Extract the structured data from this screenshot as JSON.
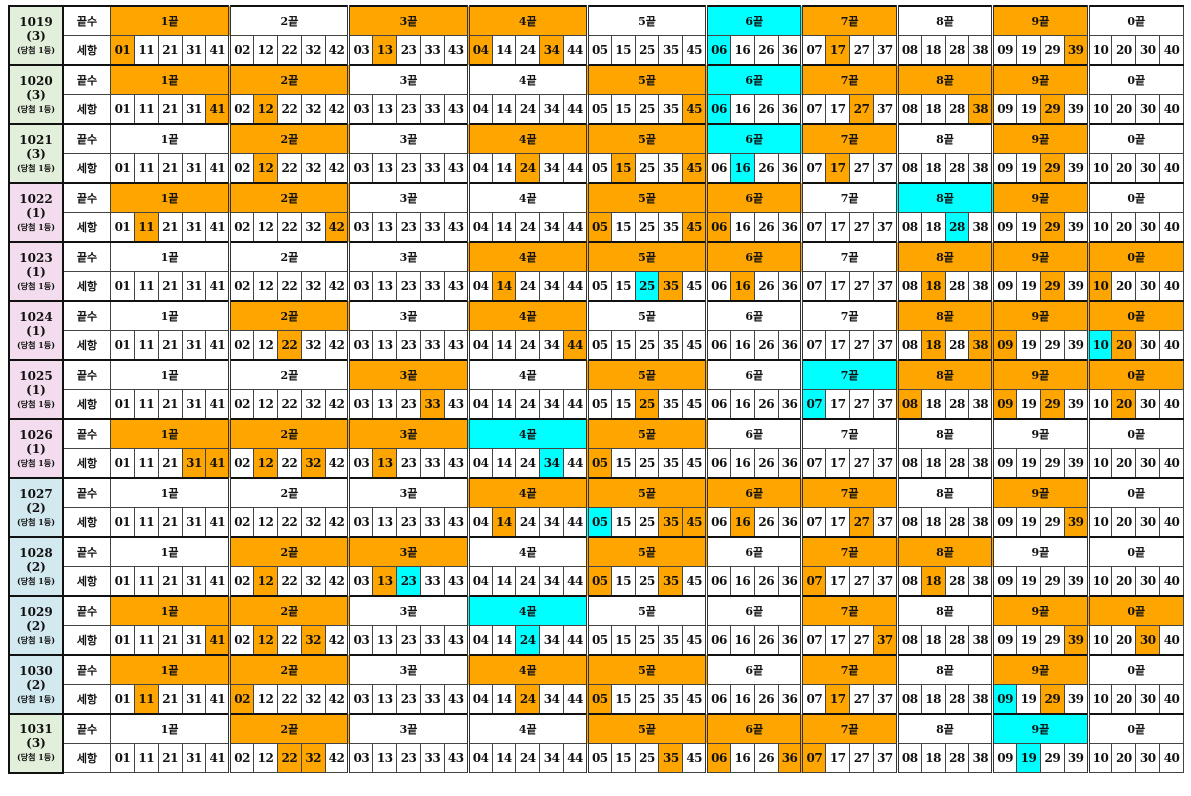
{
  "labels": {
    "tail": "끝수",
    "item": "세항"
  },
  "colors": {
    "orange": "#ffa500",
    "cyan": "#00ffff",
    "white": "#ffffff",
    "green": "#e2efda",
    "pink": "#f2dcee",
    "blue": "#d2e9ef"
  },
  "groups": [
    {
      "label": "1끝",
      "numbers": [
        "01",
        "11",
        "21",
        "31",
        "41"
      ]
    },
    {
      "label": "2끝",
      "numbers": [
        "02",
        "12",
        "22",
        "32",
        "42"
      ]
    },
    {
      "label": "3끝",
      "numbers": [
        "03",
        "13",
        "23",
        "33",
        "43"
      ]
    },
    {
      "label": "4끝",
      "numbers": [
        "04",
        "14",
        "24",
        "34",
        "44"
      ]
    },
    {
      "label": "5끝",
      "numbers": [
        "05",
        "15",
        "25",
        "35",
        "45"
      ]
    },
    {
      "label": "6끝",
      "numbers": [
        "06",
        "16",
        "26",
        "36"
      ]
    },
    {
      "label": "7끝",
      "numbers": [
        "07",
        "17",
        "27",
        "37"
      ]
    },
    {
      "label": "8끝",
      "numbers": [
        "08",
        "18",
        "28",
        "38"
      ]
    },
    {
      "label": "9끝",
      "numbers": [
        "09",
        "19",
        "29",
        "39"
      ]
    },
    {
      "label": "0끝",
      "numbers": [
        "10",
        "20",
        "30",
        "40"
      ]
    }
  ],
  "rows": [
    {
      "draw": "1019",
      "count": "(3)",
      "note": "(당첨 1등)",
      "bg": "green",
      "orange_groups": [
        "1끝",
        "3끝",
        "4끝",
        "7끝",
        "9끝"
      ],
      "cyan_groups": [
        "6끝"
      ],
      "orange_numbers": [
        "01",
        "13",
        "04",
        "34",
        "17",
        "39"
      ],
      "cyan_numbers": [
        "06"
      ]
    },
    {
      "draw": "1020",
      "count": "(3)",
      "note": "(당첨 1등)",
      "bg": "green",
      "orange_groups": [
        "1끝",
        "2끝",
        "5끝",
        "7끝",
        "8끝",
        "9끝"
      ],
      "cyan_groups": [
        "6끝"
      ],
      "orange_numbers": [
        "41",
        "12",
        "45",
        "27",
        "38",
        "29"
      ],
      "cyan_numbers": [
        "06"
      ]
    },
    {
      "draw": "1021",
      "count": "(3)",
      "note": "(당첨 1등)",
      "bg": "green",
      "orange_groups": [
        "2끝",
        "4끝",
        "5끝",
        "7끝",
        "9끝"
      ],
      "cyan_groups": [
        "6끝"
      ],
      "orange_numbers": [
        "12",
        "24",
        "15",
        "45",
        "17",
        "29"
      ],
      "cyan_numbers": [
        "16"
      ]
    },
    {
      "draw": "1022",
      "count": "(1)",
      "note": "(당첨 1등)",
      "bg": "pink",
      "orange_groups": [
        "1끝",
        "2끝",
        "5끝",
        "6끝",
        "9끝"
      ],
      "cyan_groups": [
        "8끝"
      ],
      "orange_numbers": [
        "11",
        "42",
        "05",
        "45",
        "06",
        "29"
      ],
      "cyan_numbers": [
        "28"
      ]
    },
    {
      "draw": "1023",
      "count": "(1)",
      "note": "(당첨 1등)",
      "bg": "pink",
      "orange_groups": [
        "4끝",
        "5끝",
        "6끝",
        "8끝",
        "9끝",
        "0끝"
      ],
      "cyan_groups": [],
      "orange_numbers": [
        "14",
        "35",
        "16",
        "18",
        "29",
        "10"
      ],
      "cyan_numbers": [
        "25"
      ]
    },
    {
      "draw": "1024",
      "count": "(1)",
      "note": "(당첨 1등)",
      "bg": "pink",
      "orange_groups": [
        "2끝",
        "4끝",
        "8끝",
        "9끝",
        "0끝"
      ],
      "cyan_groups": [],
      "orange_numbers": [
        "22",
        "44",
        "18",
        "38",
        "09",
        "20"
      ],
      "cyan_numbers": [
        "10"
      ]
    },
    {
      "draw": "1025",
      "count": "(1)",
      "note": "(당첨 1등)",
      "bg": "pink",
      "orange_groups": [
        "3끝",
        "5끝",
        "8끝",
        "9끝",
        "0끝"
      ],
      "cyan_groups": [
        "7끝"
      ],
      "orange_numbers": [
        "33",
        "25",
        "08",
        "09",
        "29",
        "20"
      ],
      "cyan_numbers": [
        "07"
      ]
    },
    {
      "draw": "1026",
      "count": "(1)",
      "note": "(당첨 1등)",
      "bg": "pink",
      "orange_groups": [
        "1끝",
        "2끝",
        "3끝",
        "5끝"
      ],
      "cyan_groups": [
        "4끝"
      ],
      "orange_numbers": [
        "31",
        "41",
        "12",
        "32",
        "13",
        "05"
      ],
      "cyan_numbers": [
        "34"
      ]
    },
    {
      "draw": "1027",
      "count": "(2)",
      "note": "(당첨 1등)",
      "bg": "blue",
      "orange_groups": [
        "4끝",
        "5끝",
        "6끝",
        "7끝",
        "9끝"
      ],
      "cyan_groups": [],
      "orange_numbers": [
        "14",
        "35",
        "45",
        "16",
        "27",
        "39"
      ],
      "cyan_numbers": [
        "05"
      ]
    },
    {
      "draw": "1028",
      "count": "(2)",
      "note": "(당첨 1등)",
      "bg": "blue",
      "orange_groups": [
        "2끝",
        "3끝",
        "5끝",
        "7끝",
        "8끝"
      ],
      "cyan_groups": [],
      "orange_numbers": [
        "12",
        "13",
        "05",
        "35",
        "07",
        "18"
      ],
      "cyan_numbers": [
        "23"
      ]
    },
    {
      "draw": "1029",
      "count": "(2)",
      "note": "(당첨 1등)",
      "bg": "blue",
      "orange_groups": [
        "1끝",
        "2끝",
        "7끝",
        "9끝",
        "0끝"
      ],
      "cyan_groups": [
        "4끝"
      ],
      "orange_numbers": [
        "41",
        "12",
        "32",
        "37",
        "39",
        "30"
      ],
      "cyan_numbers": [
        "24"
      ]
    },
    {
      "draw": "1030",
      "count": "(2)",
      "note": "(당첨 1등)",
      "bg": "blue",
      "orange_groups": [
        "1끝",
        "2끝",
        "4끝",
        "5끝",
        "7끝",
        "9끝"
      ],
      "cyan_groups": [],
      "orange_numbers": [
        "11",
        "02",
        "24",
        "05",
        "17",
        "29"
      ],
      "cyan_numbers": [
        "09"
      ]
    },
    {
      "draw": "1031",
      "count": "(3)",
      "note": "(당첨 1등)",
      "bg": "green",
      "orange_groups": [
        "2끝",
        "5끝",
        "6끝",
        "7끝"
      ],
      "cyan_groups": [
        "9끝"
      ],
      "orange_numbers": [
        "22",
        "32",
        "35",
        "06",
        "36",
        "07"
      ],
      "cyan_numbers": [
        "19"
      ]
    }
  ]
}
